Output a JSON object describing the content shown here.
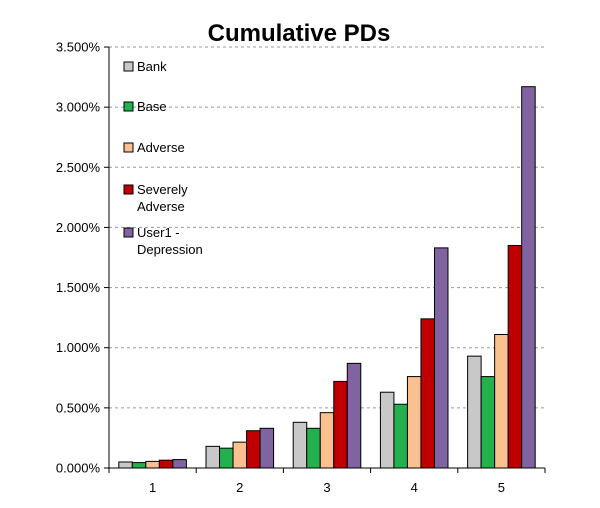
{
  "chart_data": {
    "type": "bar",
    "title": "Cumulative PDs",
    "xlabel": "",
    "ylabel": "",
    "categories": [
      "1",
      "2",
      "3",
      "4",
      "5"
    ],
    "ylim": [
      0,
      3.5
    ],
    "yticks": [
      0,
      0.5,
      1.0,
      1.5,
      2.0,
      2.5,
      3.0,
      3.5
    ],
    "ytick_labels": [
      "0.000%",
      "0.500%",
      "1.000%",
      "1.500%",
      "2.000%",
      "2.500%",
      "3.000%",
      "3.500%"
    ],
    "grid": "horizontal dashed",
    "legend_position": "top-left",
    "series": [
      {
        "name": "Bank",
        "legend_lines": [
          "Bank"
        ],
        "color": "#c8c8c8",
        "values": [
          0.05,
          0.18,
          0.38,
          0.63,
          0.93
        ]
      },
      {
        "name": "Base",
        "legend_lines": [
          "Base"
        ],
        "color": "#22b14c",
        "values": [
          0.045,
          0.165,
          0.33,
          0.53,
          0.76
        ]
      },
      {
        "name": "Adverse",
        "legend_lines": [
          "Adverse"
        ],
        "color": "#fac090",
        "values": [
          0.055,
          0.215,
          0.46,
          0.76,
          1.11
        ]
      },
      {
        "name": "Severely Adverse",
        "legend_lines": [
          "Severely",
          "Adverse"
        ],
        "color": "#c00000",
        "values": [
          0.065,
          0.31,
          0.72,
          1.24,
          1.85
        ]
      },
      {
        "name": "User1 - Depression",
        "legend_lines": [
          "User1 -",
          "Depression"
        ],
        "color": "#8064a2",
        "values": [
          0.07,
          0.33,
          0.87,
          1.83,
          3.17
        ]
      }
    ]
  }
}
